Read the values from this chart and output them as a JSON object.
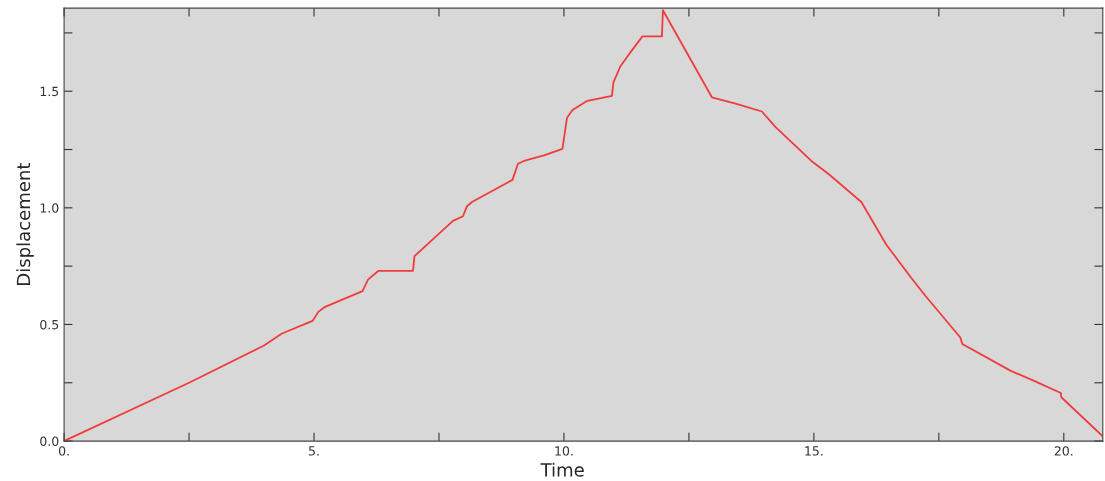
{
  "chart_data": {
    "type": "line",
    "xlabel": "Time",
    "ylabel": "Displacement",
    "x": [
      0,
      2.5,
      4.0,
      4.35,
      4.97,
      5.09,
      5.21,
      5.97,
      6.08,
      6.29,
      6.98,
      7.01,
      7.78,
      7.98,
      8.06,
      8.16,
      8.97,
      9.08,
      9.2,
      9.6,
      9.97,
      10.06,
      10.17,
      10.47,
      10.96,
      10.99,
      11.13,
      11.31,
      11.57,
      11.96,
      11.98,
      12.96,
      13.45,
      13.96,
      14.23,
      14.95,
      15.3,
      15.95,
      16.45,
      16.95,
      17.23,
      17.93,
      17.97,
      18.94,
      19.44,
      19.94,
      19.95,
      20.78
    ],
    "series": [
      {
        "color": "#f03c3c",
        "values": [
          0,
          0.25,
          0.41,
          0.46,
          0.515,
          0.555,
          0.574,
          0.643,
          0.692,
          0.73,
          0.73,
          0.793,
          0.944,
          0.964,
          1.007,
          1.025,
          1.12,
          1.189,
          1.201,
          1.225,
          1.253,
          1.385,
          1.419,
          1.459,
          1.48,
          1.538,
          1.607,
          1.661,
          1.735,
          1.735,
          1.847,
          1.474,
          1.446,
          1.413,
          1.347,
          1.201,
          1.144,
          1.025,
          0.842,
          0.699,
          0.623,
          0.444,
          0.416,
          0.301,
          0.255,
          0.206,
          0.188,
          0.02
        ]
      }
    ],
    "xlim": [
      0,
      20.78
    ],
    "ylim": [
      0,
      1.856
    ],
    "xticks": [
      {
        "value": 0,
        "label": "0."
      },
      {
        "value": 2.5,
        "label": null
      },
      {
        "value": 5,
        "label": "5."
      },
      {
        "value": 7.5,
        "label": null
      },
      {
        "value": 10,
        "label": "10."
      },
      {
        "value": 12.5,
        "label": null
      },
      {
        "value": 15,
        "label": "15."
      },
      {
        "value": 17.5,
        "label": null
      },
      {
        "value": 20,
        "label": "20."
      }
    ],
    "yticks": [
      {
        "value": 0,
        "label": "0.0"
      },
      {
        "value": 0.25,
        "label": null
      },
      {
        "value": 0.5,
        "label": "0.5"
      },
      {
        "value": 0.75,
        "label": null
      },
      {
        "value": 1.0,
        "label": "1.0"
      },
      {
        "value": 1.25,
        "label": null
      },
      {
        "value": 1.5,
        "label": "1.5"
      },
      {
        "value": 1.75,
        "label": null
      }
    ],
    "grid": false,
    "legend": false,
    "marker": "none",
    "line_style": "solid"
  }
}
